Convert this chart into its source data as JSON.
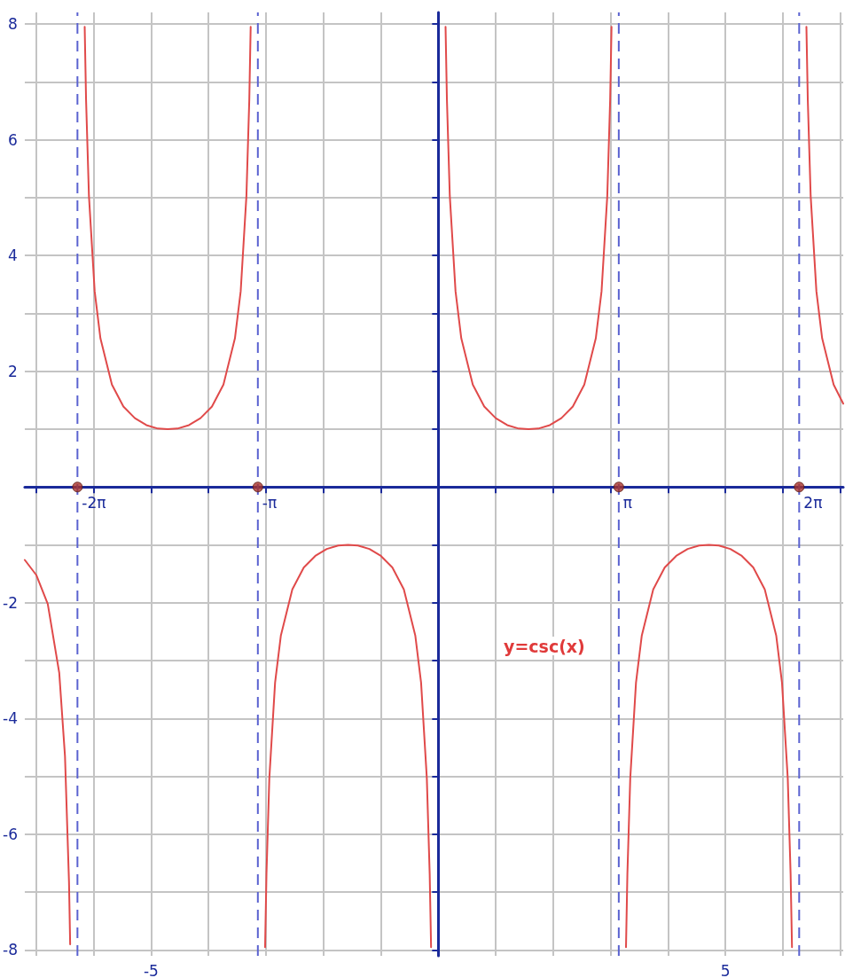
{
  "chart_data": {
    "type": "line",
    "marker": "none",
    "line_style": "solid",
    "grid": true,
    "xlim": [
      -7.2,
      7.05
    ],
    "ylim": [
      -8.1,
      8.2
    ],
    "xticks": [
      {
        "value": -7,
        "label": null
      },
      {
        "value": -6,
        "label": null
      },
      -5,
      {
        "value": -4,
        "label": null
      },
      {
        "value": -3,
        "label": null
      },
      {
        "value": -2,
        "label": null
      },
      {
        "value": -1,
        "label": null
      },
      {
        "value": 0,
        "label": null
      },
      {
        "value": 1,
        "label": null
      },
      {
        "value": 2,
        "label": null
      },
      {
        "value": 3,
        "label": null
      },
      {
        "value": 4,
        "label": null
      },
      5,
      {
        "value": 6,
        "label": null
      },
      {
        "value": 7,
        "label": null
      }
    ],
    "yticks": [
      -8,
      {
        "value": -7,
        "label": null
      },
      -6,
      {
        "value": -5,
        "label": null
      },
      -4,
      {
        "value": -3,
        "label": null
      },
      -2,
      {
        "value": -1,
        "label": null
      },
      {
        "value": 0,
        "label": null
      },
      {
        "value": 1,
        "label": null
      },
      2,
      {
        "value": 3,
        "label": null
      },
      4,
      {
        "value": 5,
        "label": null
      },
      6,
      {
        "value": 7,
        "label": null
      },
      8
    ],
    "series": [
      {
        "color": "#e04a4a",
        "x": [
          -7.2,
          -7.0,
          -6.8,
          -6.6,
          -6.5,
          -6.43,
          -6.41,
          -6.283,
          -6.157,
          -6.133,
          -6.083,
          -5.983,
          -5.883,
          -5.683,
          -5.483,
          -5.283,
          -5.083,
          -4.883,
          -4.712,
          -4.541,
          -4.341,
          -4.141,
          -3.941,
          -3.741,
          -3.541,
          -3.441,
          -3.341,
          -3.291,
          -3.267,
          -3.142,
          -3.016,
          -2.992,
          -2.942,
          -2.842,
          -2.742,
          -2.542,
          -2.342,
          -2.142,
          -1.942,
          -1.742,
          -1.571,
          -1.4,
          -1.2,
          -1.0,
          -0.8,
          -0.6,
          -0.4,
          -0.3,
          -0.2,
          -0.15,
          -0.126,
          0,
          0.126,
          0.15,
          0.2,
          0.3,
          0.4,
          0.6,
          0.8,
          1.0,
          1.2,
          1.4,
          1.571,
          1.742,
          1.942,
          2.142,
          2.342,
          2.542,
          2.742,
          2.842,
          2.942,
          2.992,
          3.016,
          3.142,
          3.268,
          3.292,
          3.342,
          3.442,
          3.542,
          3.742,
          3.942,
          4.142,
          4.342,
          4.542,
          4.712,
          4.884,
          5.084,
          5.284,
          5.484,
          5.684,
          5.884,
          5.984,
          6.084,
          6.134,
          6.158,
          6.283,
          6.409,
          6.433,
          6.483,
          6.583,
          6.683,
          6.883,
          7.05
        ],
        "values": [
          -1.26,
          -1.52,
          -2.02,
          -3.21,
          -4.65,
          -6.83,
          -7.9,
          null,
          7.95,
          6.69,
          5.03,
          3.38,
          2.57,
          1.77,
          1.39,
          1.19,
          1.07,
          1.01,
          1.0,
          1.01,
          1.07,
          1.19,
          1.39,
          1.77,
          2.57,
          3.38,
          5.03,
          6.69,
          7.95,
          null,
          -7.95,
          -6.69,
          -5.03,
          -3.38,
          -2.57,
          -1.77,
          -1.39,
          -1.19,
          -1.07,
          -1.01,
          -1.0,
          -1.01,
          -1.07,
          -1.19,
          -1.39,
          -1.77,
          -2.57,
          -3.38,
          -5.03,
          -6.69,
          -7.95,
          null,
          7.95,
          6.69,
          5.03,
          3.38,
          2.57,
          1.77,
          1.39,
          1.19,
          1.07,
          1.01,
          1.0,
          1.01,
          1.07,
          1.19,
          1.39,
          1.77,
          2.57,
          3.38,
          5.03,
          6.69,
          7.95,
          null,
          -7.95,
          -6.69,
          -5.03,
          -3.38,
          -2.57,
          -1.77,
          -1.39,
          -1.19,
          -1.07,
          -1.01,
          -1.0,
          -1.01,
          -1.07,
          -1.19,
          -1.39,
          -1.77,
          -2.57,
          -3.38,
          -5.03,
          -6.69,
          -7.95,
          null,
          7.95,
          6.69,
          5.03,
          3.38,
          2.57,
          1.77,
          1.44
        ]
      },
      {
        "type": "scatter",
        "marker": "circle",
        "color": "#a8322a",
        "x": [
          -6.283,
          -3.142,
          3.142,
          6.283
        ],
        "values": [
          0,
          0,
          0,
          0
        ]
      }
    ],
    "ref_lines": [
      {
        "axis": "x",
        "value": -6.283,
        "label": "-2π",
        "color": "#5a62d0",
        "line_style": "dashed"
      },
      {
        "axis": "x",
        "value": -3.142,
        "label": "-π",
        "color": "#5a62d0",
        "line_style": "dashed"
      },
      {
        "axis": "x",
        "value": 3.142,
        "label": "π",
        "color": "#5a62d0",
        "line_style": "dashed"
      },
      {
        "axis": "x",
        "value": 6.283,
        "label": "2π",
        "color": "#5a62d0",
        "line_style": "dashed"
      }
    ],
    "annotations": [
      "y=csc(x)"
    ]
  }
}
